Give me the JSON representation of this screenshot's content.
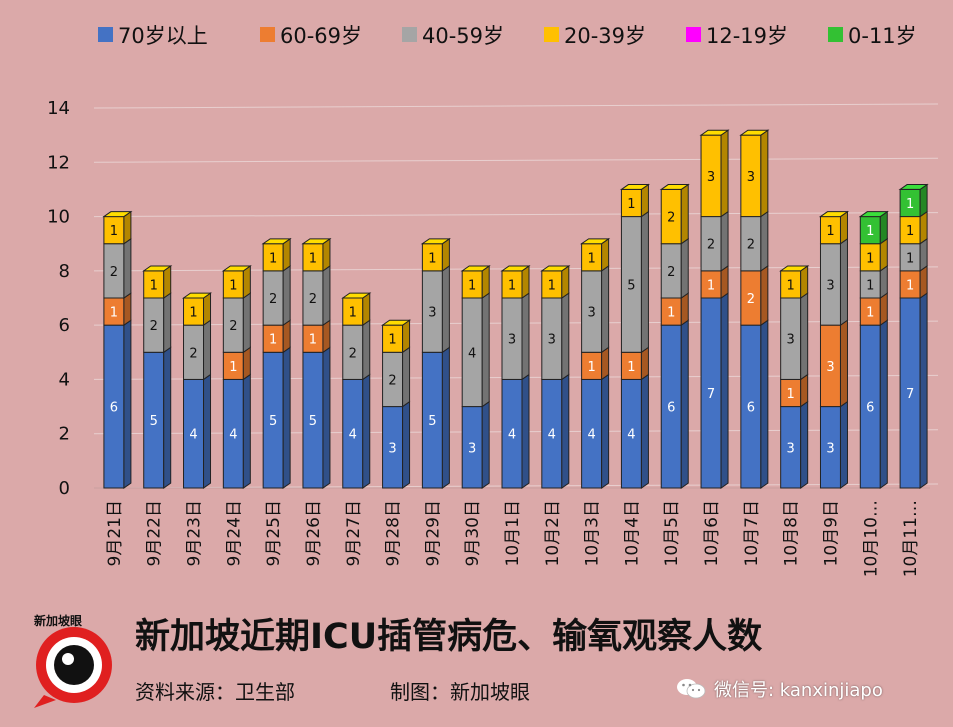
{
  "chart_data": {
    "type": "bar",
    "stacked": true,
    "categories": [
      "9月21日",
      "9月22日",
      "9月23日",
      "9月24日",
      "9月25日",
      "9月26日",
      "9月27日",
      "9月28日",
      "9月29日",
      "9月30日",
      "10月1日",
      "10月2日",
      "10月3日",
      "10月4日",
      "10月5日",
      "10月6日",
      "10月7日",
      "10月8日",
      "10月9日",
      "10月10…",
      "10月11…"
    ],
    "series": [
      {
        "name": "70岁以上",
        "color": "#4472c4",
        "values": [
          6,
          5,
          4,
          4,
          5,
          5,
          4,
          3,
          5,
          3,
          4,
          4,
          4,
          4,
          6,
          7,
          6,
          3,
          3,
          6,
          7
        ]
      },
      {
        "name": "60-69岁",
        "color": "#ed7d31",
        "values": [
          1,
          0,
          0,
          1,
          1,
          1,
          0,
          0,
          0,
          0,
          0,
          0,
          1,
          1,
          1,
          1,
          2,
          1,
          3,
          1,
          1
        ]
      },
      {
        "name": "40-59岁",
        "color": "#a5a5a5",
        "values": [
          2,
          2,
          2,
          2,
          2,
          2,
          2,
          2,
          3,
          4,
          3,
          3,
          3,
          5,
          2,
          2,
          2,
          3,
          3,
          1,
          1
        ]
      },
      {
        "name": "20-39岁",
        "color": "#ffc000",
        "values": [
          1,
          1,
          1,
          1,
          1,
          1,
          1,
          1,
          1,
          1,
          1,
          1,
          1,
          1,
          2,
          3,
          3,
          1,
          1,
          1,
          1
        ]
      },
      {
        "name": "12-19岁",
        "color": "#ff00ff",
        "values": [
          0,
          0,
          0,
          0,
          0,
          0,
          0,
          0,
          0,
          0,
          0,
          0,
          0,
          0,
          0,
          0,
          0,
          0,
          0,
          0,
          0
        ]
      },
      {
        "name": "0-11岁",
        "color": "#33c133",
        "values": [
          0,
          0,
          0,
          0,
          0,
          0,
          0,
          0,
          0,
          0,
          0,
          0,
          0,
          0,
          0,
          0,
          0,
          0,
          0,
          1,
          1
        ]
      }
    ],
    "ylim": [
      0,
      14
    ],
    "yticks": [
      0,
      2,
      4,
      6,
      8,
      10,
      12,
      14
    ],
    "grid": true,
    "legend_position": "top"
  },
  "title": "新加坡近期ICU插管病危、输氧观察人数",
  "source": "资料来源：卫生部",
  "maker": "制图：新加坡眼",
  "wechat": "微信号: kanxinjiapo",
  "logo_text": "新加坡眼",
  "colors": {
    "background": "#dba9a9",
    "logo_red": "#e02020"
  },
  "icons": {
    "logo": "camera-lens-logo-icon",
    "wechat": "wechat-icon"
  }
}
